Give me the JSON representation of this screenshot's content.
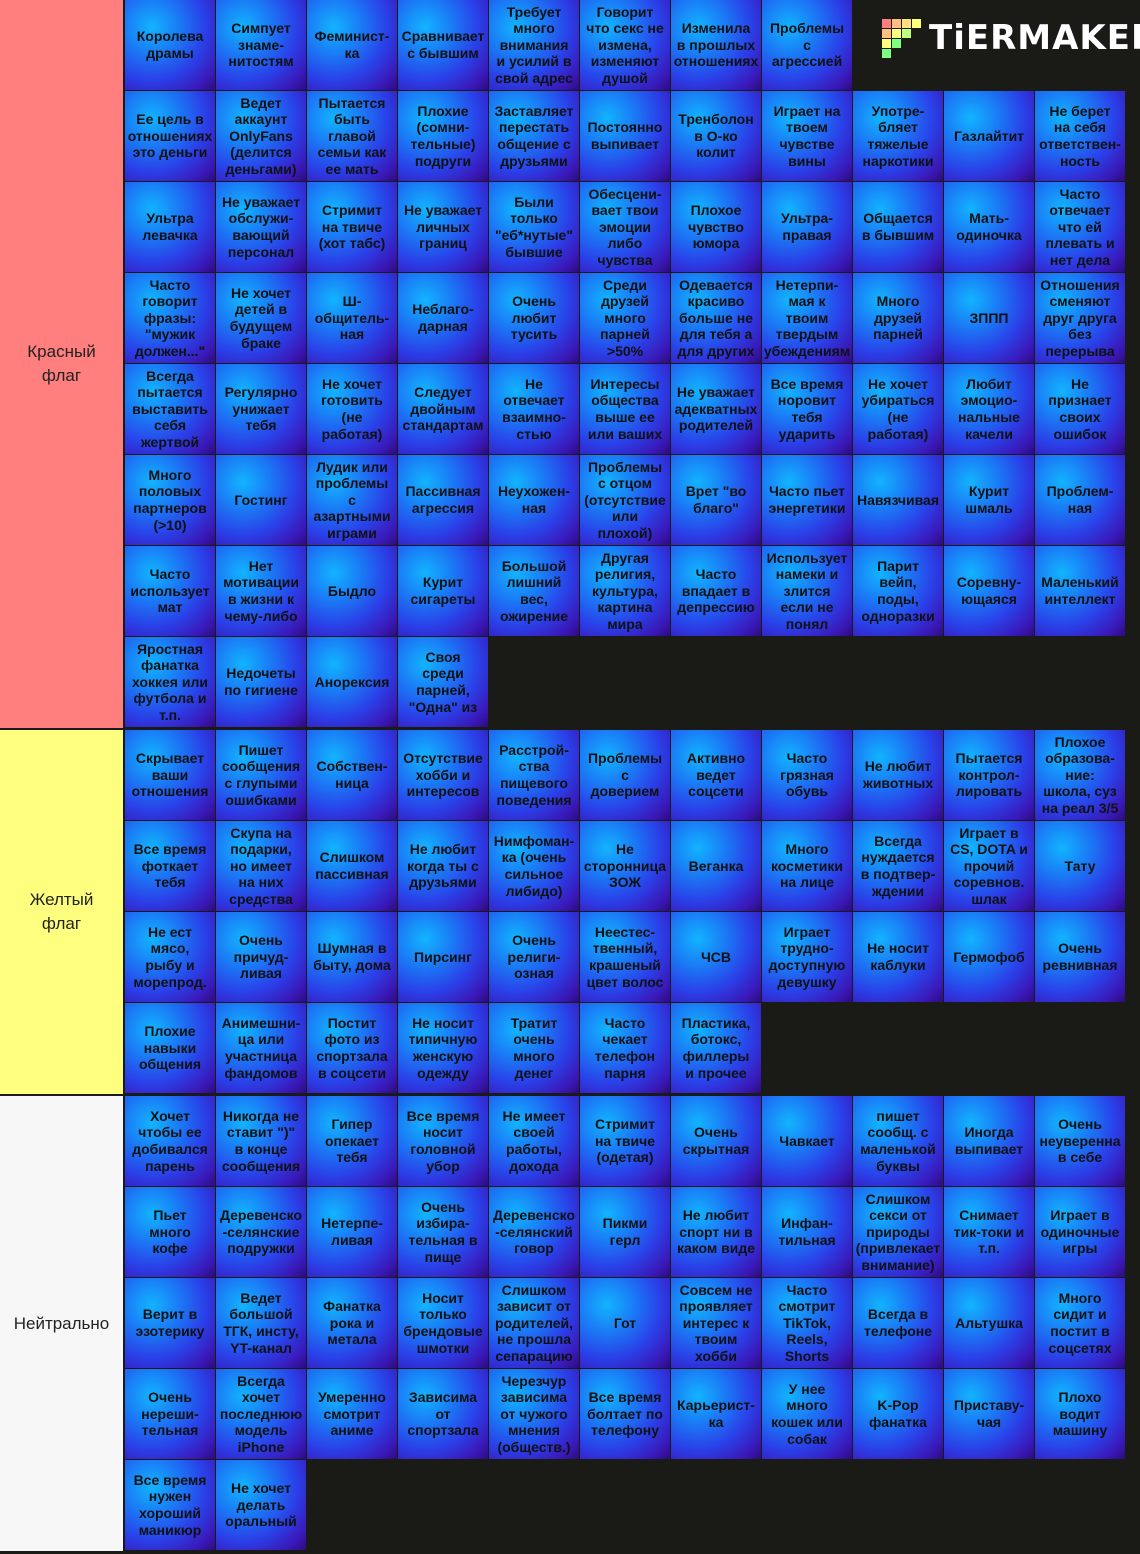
{
  "logo": "TiERMAKER",
  "tiers": [
    {
      "label": "Красный\nфлаг",
      "color": "#ff7f7f",
      "items": [
        "Королева\nдрамы",
        "Симпует\nзнаме-\nнитостям",
        "Феминист-\nка",
        "Сравнивает\nс бывшим",
        "Требует\nмного\nвнимания\nи усилий в\nсвой адрес",
        "Говорит\nчто секс не\nизмена,\nизменяют\nдушой",
        "Изменила\nв прошлых\nотношениях",
        "Проблемы\nс\nагрессией",
        "Ее цель в\nотношениях\nэто деньги",
        "Ведет\nаккаунт\nOnlyFans\n(делится\nденьгами)",
        "Пытается\nбыть\nглавой\nсемьи как\nее мать",
        "Плохие\n(сомни-\nтельные)\nподруги",
        "Заставляет\nперестать\nобщение с\nдрузьями",
        "Постоянно\nвыпивает",
        "Тренболон\nв О-ко\nколит",
        "Играет на\nтвоем\nчувстве\nвины",
        "Употре-\nбляет\nтяжелые\nнаркотики",
        "Газлайтит",
        "Не берет\nна себя\nответствен-\nность",
        "Ультра\nлевачка",
        "Не уважает\nобслужи-\nвающий\nперсонал",
        "Стримит\nна твиче\n(хот табс)",
        "Не уважает\nличных\nграниц",
        "Были\nтолько\n\"еб*нутые\"\nбывшие",
        "Обесцени-\nвает твои\nэмоции\nлибо\nчувства",
        "Плохое\nчувство\nюмора",
        "Ультра-\nправая",
        "Общается\nв бывшим",
        "Мать-\nодиночка",
        "Часто\nотвечает\nчто ей\nплевать и\nнет дела",
        "Часто\nговорит\nфразы:\n\"мужик\nдолжен...\"",
        "Не хочет\nдетей в\nбудущем\nбраке",
        "Ш-\nобщитель-\nная",
        "Неблаго-\nдарная",
        "Очень\nлюбит\nтусить",
        "Среди\nдрузей\nмного\nпарней\n>50%",
        "Одевается\nкрасиво\nбольше не\nдля тебя а\nдля других",
        "Нетерпи-\nмая к\nтвоим\nтвердым\nубеждениям",
        "Много\nдрузей\nпарней",
        "ЗППП",
        "Отношения\nсменяют\nдруг друга\nбез\nперерыва",
        "Всегда\nпытается\nвыставить\nсебя\nжертвой",
        "Регулярно\nунижает\nтебя",
        "Не хочет\nготовить\n(не\nработая)",
        "Следует\nдвойным\nстандартам",
        "Не\nотвечает\nвзаимно-\nстью",
        "Интересы\nобщества\nвыше ее\nили ваших",
        "Не уважает\nадекватных\nродителей",
        "Все время\nноровит\nтебя\nударить",
        "Не хочет\nубираться\n(не\nработая)",
        "Любит\nэмоцио-\nнальные\nкачели",
        "Не\nпризнает\nсвоих\nошибок",
        "Много\nполовых\nпартнеров\n(>10)",
        "Гостинг",
        "Лудик или\nпроблемы\nс\nазартными\nиграми",
        "Пассивная\nагрессия",
        "Неухожен-\nная",
        "Проблемы\nс отцом\n(отсутствие\nили\nплохой)",
        "Врет \"во\nблаго\"",
        "Часто пьет\nэнергетики",
        "Навязчивая",
        "Курит\nшмаль",
        "Проблем-\nная",
        "Часто\nиспользует\nмат",
        "Нет\nмотивации\nв жизни к\nчему-либо",
        "Быдло",
        "Курит\nсигареты",
        "Большой\nлишний\nвес,\nожирение",
        "Другая\nрелигия,\nкультура,\nкартина\nмира",
        "Часто\nвпадает в\nдепрессию",
        "Использует\nнамеки и\nзлится\nесли не\nпонял",
        "Парит\nвейп,\nподы,\nодноразки",
        "Соревну-\nющаяся",
        "Маленький\nинтеллект",
        "Яростная\nфанатка\nхоккея или\nфутбола и\nт.п.",
        "Недочеты\nпо гигиене",
        "Анорексия",
        "Своя\nсреди\nпарней,\n\"Одна\" из"
      ]
    },
    {
      "label": "Желтый\nфлаг",
      "color": "#ffff7f",
      "items": [
        "Скрывает\nваши\nотношения",
        "Пишет\nсообщения\nс глупыми\nошибками",
        "Собствен-\nница",
        "Отсутствие\nхобби и\nинтересов",
        "Расстрой-\nства\nпищевого\nповедения",
        "Проблемы\nс\nдоверием",
        "Активно\nведет\nсоцсети",
        "Часто\nгрязная\nобувь",
        "Не любит\nживотных",
        "Пытается\nконтрол-\nлировать",
        "Плохое\nобразова-\nние:\nшкола, суз\nна реал 3/5",
        "Все время\nфоткает\nтебя",
        "Скупа на\nподарки,\nно имеет\nна них\nсредства",
        "Слишком\nпассивная",
        "Не любит\nкогда ты с\nдрузьями",
        "Нимфоман-\nка (очень\nсильное\nлибидо)",
        "Не\nсторонница\nЗОЖ",
        "Веганка",
        "Много\nкосметики\nна лице",
        "Всегда\nнуждается\nв подтвер-\nждении",
        "Играет в\nCS, DOTA и\nпрочий\nсоревнов.\nшлак",
        "Тату",
        "Не ест\nмясо,\nрыбу и\nморепрод.",
        "Очень\nпричуд-\nливая",
        "Шумная в\nбыту, дома",
        "Пирсинг",
        "Очень\nрелиги-\nозная",
        "Неестес-\nтвенный,\nкрашеный\nцвет волос",
        "ЧСВ",
        "Играет\nтрудно-\nдоступную\nдевушку",
        "Не носит\nкаблуки",
        "Гермофоб",
        "Очень\nревнивная",
        "Плохие\nнавыки\nобщения",
        "Анимешни-\nца или\nучастница\nфандомов",
        "Постит\nфото из\nспортзала\nв соцсети",
        "Не носит\nтипичную\nженскую\nодежду",
        "Тратит\nочень\nмного\nденег",
        "Часто\nчекает\nтелефон\nпарня",
        "Пластика,\nботокс,\nфиллеры\nи прочее"
      ]
    },
    {
      "label": "Нейтрально",
      "color": "#f7f7f7",
      "items": [
        "Хочет\nчтобы ее\nдобивался\nпарень",
        "Никогда не\nставит \")\"\nв конце\nсообщения",
        "Гипер\nопекает\nтебя",
        "Все время\nносит\nголовной\nубор",
        "Не имеет\nсвоей\nработы,\nдохода",
        "Стримит\nна твиче\n(одетая)",
        "Очень\nскрытная",
        "Чавкает",
        "пишет\nсообщ. с\nмаленькой\nбуквы",
        "Иногда\nвыпивает",
        "Очень\nнеуверенна\nв себе",
        "Пьет\nмного\nкофе",
        "Деревенско\n-селянские\nподружки",
        "Нетерпе-\nливая",
        "Очень\nизбира-\nтельная в\nпище",
        "Деревенско\n-селянский\nговор",
        "Пикми\nгерл",
        "Не любит\nспорт ни в\nкаком виде",
        "Инфан-\nтильная",
        "Слишком\nсекси от\nприроды\n(привлекает\nвнимание)",
        "Снимает\nтик-токи и\nт.п.",
        "Играет в\nодиночные\nигры",
        "Верит в\nэзотерику",
        "Ведет\nбольшой\nТГК, инсту,\nYT-канал",
        "Фанатка\nрока и\nметала",
        "Носит\nтолько\nбрендовые\nшмотки",
        "Слишком\nзависит от\nродителей,\nне прошла\nсепарацию",
        "Гот",
        "Совсем не\nпроявляет\nинтерес к\nтвоим\nхобби",
        "Часто\nсмотрит\nTikTok,\nReels,\nShorts",
        "Всегда в\nтелефоне",
        "Альтушка",
        "Много\nсидит и\nпостит в\nсоцсетях",
        "Очень\nнереши-\nтельная",
        "Всегда\nхочет\nпоследнюю\nмодель\niPhone",
        "Умеренно\nсмотрит\nаниме",
        "Зависима\nот\nспортзала",
        "Черезчур\nзависима\nот чужого\nмнения\n(обществ.)",
        "Все время\nболтает по\nтелефону",
        "Карьерист-\nка",
        "У нее\nмного\nкошек или\nсобак",
        "K-Pop\nфанатка",
        "Приставу-\nчая",
        "Плохо\nводит\nмашину",
        "Все время\nнужен\nхороший\nманикюр",
        "Не хочет\nделать\nоральный"
      ]
    }
  ]
}
